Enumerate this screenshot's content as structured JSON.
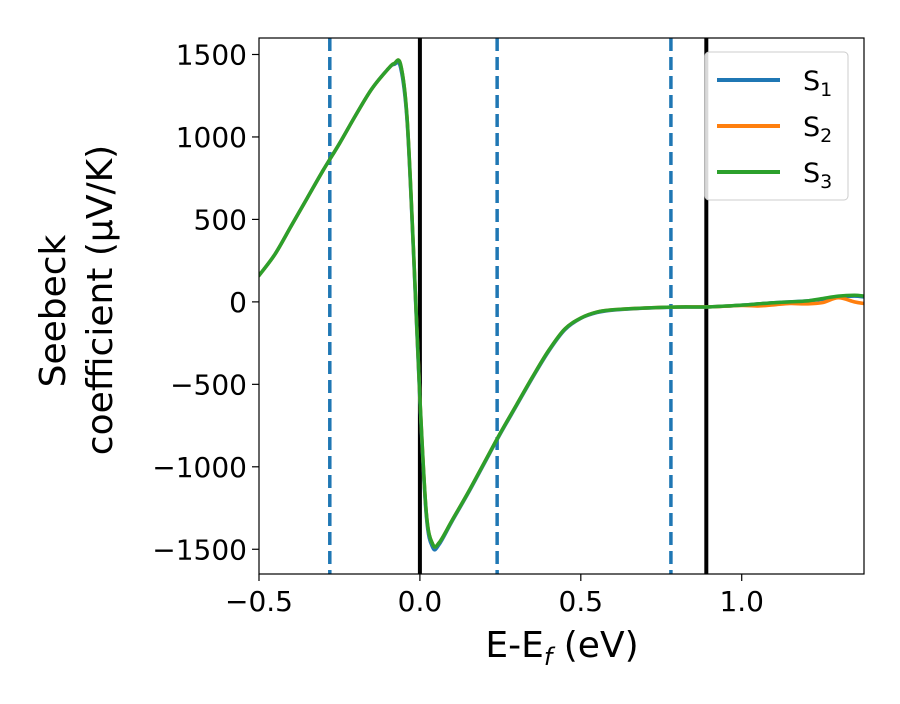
{
  "chart_data": {
    "type": "line",
    "xlabel": "E-E",
    "xlabel_sub": "f",
    "xlabel_unit": " (eV)",
    "ylabel_line1": "Seebeck",
    "ylabel_line2": "coefficient  (μV/K)",
    "xlim": [
      -0.5,
      1.38
    ],
    "ylim": [
      -1650,
      1600
    ],
    "xticks": [
      -0.5,
      0.0,
      0.5,
      1.0
    ],
    "xtick_labels": [
      "−0.5",
      "0.0",
      "0.5",
      "1.0"
    ],
    "yticks": [
      -1500,
      -1000,
      -500,
      0,
      500,
      1000,
      1500
    ],
    "ytick_labels": [
      "−1500",
      "−1000",
      "−500",
      "0",
      "500",
      "1000",
      "1500"
    ],
    "grid": false,
    "legend_placement": "top-right",
    "vertical_lines": [
      {
        "x": -0.28,
        "style": "dashed",
        "color": "#1f77b4"
      },
      {
        "x": 0.0,
        "style": "solid",
        "color": "#000000"
      },
      {
        "x": 0.24,
        "style": "dashed",
        "color": "#1f77b4"
      },
      {
        "x": 0.78,
        "style": "dashed",
        "color": "#1f77b4"
      },
      {
        "x": 0.89,
        "style": "solid",
        "color": "#000000"
      }
    ],
    "x": [
      -0.5,
      -0.45,
      -0.4,
      -0.35,
      -0.3,
      -0.25,
      -0.2,
      -0.15,
      -0.1,
      -0.08,
      -0.06,
      -0.04,
      -0.02,
      0.0,
      0.02,
      0.04,
      0.06,
      0.1,
      0.15,
      0.2,
      0.25,
      0.3,
      0.35,
      0.4,
      0.45,
      0.5,
      0.55,
      0.6,
      0.7,
      0.8,
      0.9,
      1.0,
      1.05,
      1.1,
      1.15,
      1.2,
      1.25,
      1.3,
      1.35,
      1.38
    ],
    "series": [
      {
        "name": "S",
        "sub": "1",
        "color": "#1f77b4",
        "values": [
          160,
          290,
          460,
          630,
          800,
          960,
          1130,
          1290,
          1410,
          1440,
          1420,
          1100,
          300,
          -600,
          -1300,
          -1490,
          -1470,
          -1330,
          -1160,
          -980,
          -800,
          -630,
          -460,
          -300,
          -170,
          -100,
          -65,
          -50,
          -38,
          -32,
          -30,
          -20,
          -12,
          -5,
          0,
          5,
          15,
          30,
          35,
          30
        ]
      },
      {
        "name": "S",
        "sub": "2",
        "color": "#ff7f0e",
        "values": [
          160,
          290,
          460,
          630,
          800,
          960,
          1130,
          1290,
          1410,
          1445,
          1440,
          1120,
          320,
          -580,
          -1280,
          -1470,
          -1460,
          -1325,
          -1155,
          -975,
          -795,
          -625,
          -455,
          -295,
          -165,
          -98,
          -62,
          -48,
          -37,
          -31,
          -30,
          -22,
          -25,
          -18,
          -10,
          -12,
          -5,
          25,
          0,
          -10
        ]
      },
      {
        "name": "S",
        "sub": "3",
        "color": "#2ca02c",
        "values": [
          160,
          290,
          460,
          630,
          800,
          960,
          1130,
          1290,
          1410,
          1445,
          1440,
          1120,
          320,
          -580,
          -1280,
          -1470,
          -1460,
          -1325,
          -1155,
          -975,
          -795,
          -625,
          -455,
          -295,
          -165,
          -98,
          -62,
          -48,
          -37,
          -31,
          -30,
          -20,
          -12,
          -5,
          0,
          5,
          20,
          35,
          40,
          35
        ]
      }
    ]
  }
}
